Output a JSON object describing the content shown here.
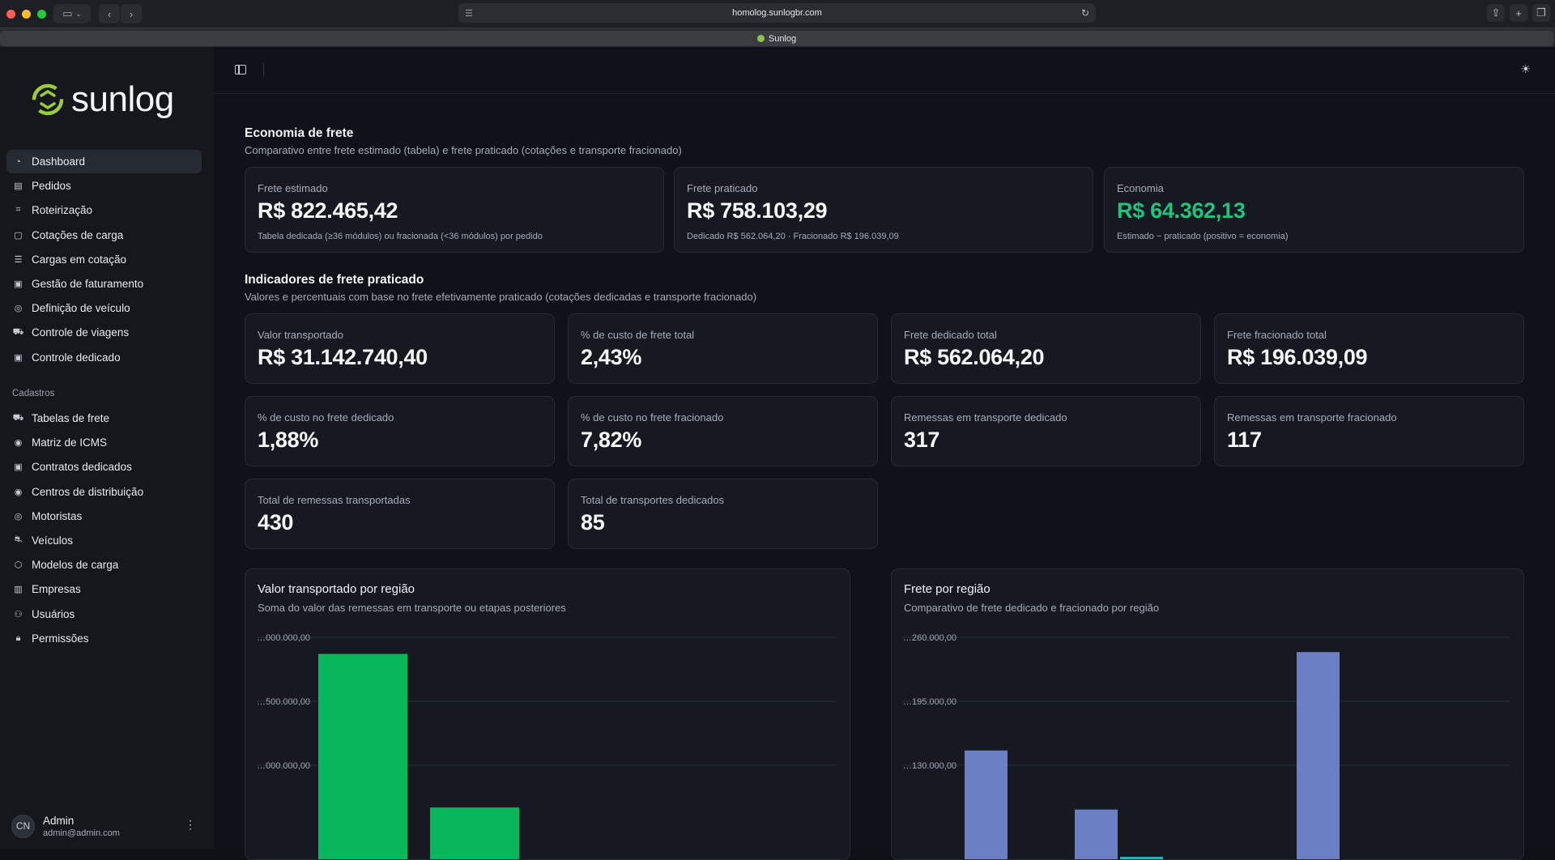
{
  "browser": {
    "url": "homolog.sunlogbr.com",
    "tab_title": "Sunlog"
  },
  "sidebar": {
    "logo_text": "sunlog",
    "main_items": [
      {
        "label": "Dashboard",
        "icon": "gauge-icon"
      },
      {
        "label": "Pedidos",
        "icon": "receipt-icon"
      },
      {
        "label": "Roteirização",
        "icon": "map-icon"
      },
      {
        "label": "Cotações de carga",
        "icon": "file-icon"
      },
      {
        "label": "Cargas em cotação",
        "icon": "list-icon"
      },
      {
        "label": "Gestão de faturamento",
        "icon": "clipboard-icon"
      },
      {
        "label": "Definição de veículo",
        "icon": "steering-wheel-icon"
      },
      {
        "label": "Controle de viagens",
        "icon": "truck-icon"
      },
      {
        "label": "Controle dedicado",
        "icon": "clipboard-check-icon"
      }
    ],
    "section_label": "Cadastros",
    "cadastro_items": [
      {
        "label": "Tabelas de frete",
        "icon": "truck-icon"
      },
      {
        "label": "Matriz de ICMS",
        "icon": "map-pin-icon"
      },
      {
        "label": "Contratos dedicados",
        "icon": "clipboard-icon"
      },
      {
        "label": "Centros de distribuição",
        "icon": "map-pin-icon"
      },
      {
        "label": "Motoristas",
        "icon": "steering-wheel-icon"
      },
      {
        "label": "Veículos",
        "icon": "car-icon"
      },
      {
        "label": "Modelos de carga",
        "icon": "box-icon"
      },
      {
        "label": "Empresas",
        "icon": "building-icon"
      },
      {
        "label": "Usuários",
        "icon": "users-icon"
      },
      {
        "label": "Permissões",
        "icon": "lock-icon"
      }
    ],
    "user": {
      "initials": "CN",
      "name": "Admin",
      "email": "admin@admin.com"
    }
  },
  "economia": {
    "title": "Economia de frete",
    "subtitle": "Comparativo entre frete estimado (tabela) e frete praticado (cotações e transporte fracionado)",
    "cards": [
      {
        "label": "Frete estimado",
        "value": "R$ 822.465,42",
        "note": "Tabela dedicada (≥36 módulos) ou fracionada (<36 módulos) por pedido"
      },
      {
        "label": "Frete praticado",
        "value": "R$ 758.103,29",
        "note": "Dedicado R$ 562.064,20 · Fracionado R$ 196.039,09"
      },
      {
        "label": "Economia",
        "value": "R$ 64.362,13",
        "note": "Estimado − praticado (positivo = economia)"
      }
    ]
  },
  "indicadores": {
    "title": "Indicadores de frete praticado",
    "subtitle": "Valores e percentuais com base no frete efetivamente praticado (cotações dedicadas e transporte fracionado)",
    "cards": [
      {
        "label": "Valor transportado",
        "value": "R$ 31.142.740,40"
      },
      {
        "label": "% de custo de frete total",
        "value": "2,43%"
      },
      {
        "label": "Frete dedicado total",
        "value": "R$ 562.064,20"
      },
      {
        "label": "Frete fracionado total",
        "value": "R$ 196.039,09"
      },
      {
        "label": "% de custo no frete dedicado",
        "value": "1,88%"
      },
      {
        "label": "% de custo no frete fracionado",
        "value": "7,82%"
      },
      {
        "label": "Remessas em transporte dedicado",
        "value": "317"
      },
      {
        "label": "Remessas em transporte fracionado",
        "value": "117"
      },
      {
        "label": "Total de remessas transportadas",
        "value": "430"
      },
      {
        "label": "Total de transportes dedicados",
        "value": "85"
      }
    ]
  },
  "charts": {
    "valor_regiao": {
      "title": "Valor transportado por região",
      "subtitle": "Soma do valor das remessas em transporte ou etapas posteriores"
    },
    "frete_regiao": {
      "title": "Frete por região",
      "subtitle": "Comparativo de frete dedicado e fracionado por região"
    }
  },
  "chart_data": [
    {
      "type": "bar",
      "title": "Valor transportado por região",
      "tick_labels": [
        "…000.000,00",
        "…500.000,00",
        "…000.000,00"
      ],
      "ylim": [
        0,
        20000000
      ],
      "series": [
        {
          "values": [
            18700000,
            6700000
          ]
        }
      ],
      "grid": true,
      "color": "#0ab65c"
    },
    {
      "type": "bar",
      "title": "Frete por região",
      "tick_labels": [
        "…260.000,00",
        "…195.000,00",
        "…130.000,00"
      ],
      "ylim": [
        0,
        260000
      ],
      "series": [
        {
          "values": [
            145000,
            85000,
            0
          ],
          "color": "#6b7fc4"
        },
        {
          "values": [
            0,
            37000,
            0
          ],
          "color": "#16b8c4"
        },
        {
          "values": [
            0,
            0,
            245000
          ],
          "color": "#6b7fc4"
        }
      ],
      "grid": true
    }
  ]
}
